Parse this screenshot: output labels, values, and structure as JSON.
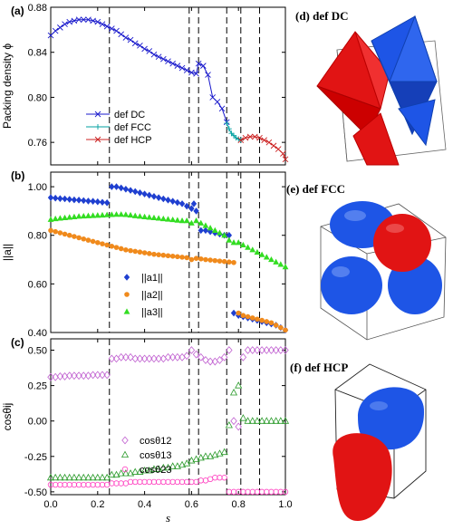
{
  "colors": {
    "dc": "#1a1acc",
    "fcc": "#00a0a0",
    "hcp": "#cc2222",
    "a1": "#1f3fd0",
    "a2": "#f08a1c",
    "a3": "#33dd22",
    "c12": "#c060d0",
    "c13": "#2a9a2a",
    "c23": "#ff40c0",
    "shape_red": "#e11414",
    "shape_blue": "#1e55e6"
  },
  "chart_data": [
    {
      "type": "line",
      "panel_label": "(a)",
      "ylabel": "Packing density ϕ",
      "ylim": [
        0.74,
        0.88
      ],
      "yticks": [
        "0.76",
        "0.80",
        "0.84",
        "0.88"
      ],
      "xlim": [
        0.0,
        1.0
      ],
      "dashed_lines_x": [
        0.25,
        0.59,
        0.63,
        0.75,
        0.81,
        0.89
      ],
      "legend": "center-left",
      "series": [
        {
          "name": "def DC",
          "marker": "x",
          "x": [
            0.0,
            0.02,
            0.04,
            0.06,
            0.08,
            0.1,
            0.12,
            0.14,
            0.16,
            0.18,
            0.2,
            0.22,
            0.24,
            0.26,
            0.28,
            0.3,
            0.32,
            0.34,
            0.36,
            0.38,
            0.4,
            0.42,
            0.44,
            0.46,
            0.48,
            0.5,
            0.52,
            0.54,
            0.56,
            0.58,
            0.6,
            0.62,
            0.63,
            0.65,
            0.67,
            0.69,
            0.71,
            0.73,
            0.75
          ],
          "y": [
            0.855,
            0.859,
            0.862,
            0.865,
            0.867,
            0.868,
            0.869,
            0.869,
            0.869,
            0.868,
            0.867,
            0.865,
            0.863,
            0.861,
            0.859,
            0.856,
            0.853,
            0.851,
            0.848,
            0.846,
            0.843,
            0.841,
            0.838,
            0.836,
            0.834,
            0.832,
            0.83,
            0.828,
            0.826,
            0.824,
            0.822,
            0.821,
            0.83,
            0.828,
            0.82,
            0.8,
            0.796,
            0.79,
            0.778
          ]
        },
        {
          "name": "def FCC",
          "marker": "+",
          "x": [
            0.75,
            0.76,
            0.77,
            0.78,
            0.79,
            0.8,
            0.81
          ],
          "y": [
            0.777,
            0.772,
            0.768,
            0.766,
            0.764,
            0.763,
            0.762
          ]
        },
        {
          "name": "def HCP",
          "marker": "x",
          "x": [
            0.81,
            0.83,
            0.85,
            0.87,
            0.89,
            0.91,
            0.93,
            0.95,
            0.97,
            0.99,
            1.0
          ],
          "y": [
            0.762,
            0.764,
            0.765,
            0.765,
            0.764,
            0.762,
            0.76,
            0.757,
            0.754,
            0.75,
            0.745
          ]
        }
      ]
    },
    {
      "type": "scatter",
      "panel_label": "(b)",
      "ylabel": "||a||",
      "ylim": [
        0.4,
        1.06
      ],
      "yticks": [
        "0.40",
        "0.60",
        "0.80",
        "1.00"
      ],
      "xlim": [
        0.0,
        1.0
      ],
      "dashed_lines_x": [
        0.25,
        0.59,
        0.63,
        0.75,
        0.81,
        0.89
      ],
      "legend": "center",
      "series": [
        {
          "name": "||a1||",
          "marker": "diamond",
          "x": [
            0.0,
            0.02,
            0.04,
            0.06,
            0.08,
            0.1,
            0.12,
            0.14,
            0.16,
            0.18,
            0.2,
            0.22,
            0.24,
            0.26,
            0.28,
            0.3,
            0.32,
            0.34,
            0.36,
            0.38,
            0.4,
            0.42,
            0.44,
            0.46,
            0.48,
            0.5,
            0.52,
            0.54,
            0.56,
            0.58,
            0.6,
            0.61,
            0.62,
            0.64,
            0.66,
            0.68,
            0.7,
            0.72,
            0.74,
            0.76,
            0.78,
            0.8,
            0.82,
            0.84,
            0.86,
            0.88,
            0.9,
            0.92,
            0.94,
            0.96,
            0.98,
            1.0
          ],
          "y": [
            0.955,
            0.953,
            0.951,
            0.95,
            0.948,
            0.946,
            0.945,
            0.943,
            0.941,
            0.94,
            0.938,
            0.936,
            0.934,
            1.0,
            1.0,
            0.995,
            0.99,
            0.985,
            0.98,
            0.975,
            0.97,
            0.965,
            0.96,
            0.955,
            0.95,
            0.945,
            0.94,
            0.935,
            0.93,
            0.92,
            0.91,
            0.93,
            0.9,
            0.82,
            0.82,
            0.815,
            0.81,
            0.805,
            0.8,
            0.8,
            0.48,
            0.47,
            0.465,
            0.46,
            0.455,
            0.45,
            0.445,
            0.44,
            0.435,
            0.43,
            0.42,
            0.41
          ]
        },
        {
          "name": "||a2||",
          "marker": "circle",
          "x": [
            0.0,
            0.02,
            0.04,
            0.06,
            0.08,
            0.1,
            0.12,
            0.14,
            0.16,
            0.18,
            0.2,
            0.22,
            0.24,
            0.26,
            0.28,
            0.3,
            0.32,
            0.34,
            0.36,
            0.38,
            0.4,
            0.42,
            0.44,
            0.46,
            0.48,
            0.5,
            0.52,
            0.54,
            0.56,
            0.58,
            0.6,
            0.62,
            0.64,
            0.66,
            0.68,
            0.7,
            0.72,
            0.74,
            0.76,
            0.78,
            0.8,
            0.82,
            0.84,
            0.86,
            0.88,
            0.9,
            0.92,
            0.94,
            0.96,
            0.98,
            1.0
          ],
          "y": [
            0.82,
            0.815,
            0.81,
            0.805,
            0.8,
            0.795,
            0.79,
            0.785,
            0.78,
            0.775,
            0.77,
            0.765,
            0.76,
            0.755,
            0.75,
            0.745,
            0.74,
            0.737,
            0.734,
            0.731,
            0.728,
            0.725,
            0.722,
            0.72,
            0.718,
            0.716,
            0.714,
            0.712,
            0.71,
            0.708,
            0.7,
            0.705,
            0.703,
            0.7,
            0.698,
            0.696,
            0.694,
            0.692,
            0.69,
            0.688,
            0.48,
            0.47,
            0.465,
            0.46,
            0.455,
            0.45,
            0.445,
            0.44,
            0.43,
            0.42,
            0.41
          ]
        },
        {
          "name": "||a3||",
          "marker": "triangle",
          "x": [
            0.0,
            0.02,
            0.04,
            0.06,
            0.08,
            0.1,
            0.12,
            0.14,
            0.16,
            0.18,
            0.2,
            0.22,
            0.24,
            0.26,
            0.28,
            0.3,
            0.32,
            0.34,
            0.36,
            0.38,
            0.4,
            0.42,
            0.44,
            0.46,
            0.48,
            0.5,
            0.52,
            0.54,
            0.56,
            0.58,
            0.6,
            0.62,
            0.64,
            0.66,
            0.68,
            0.7,
            0.72,
            0.74,
            0.76,
            0.78,
            0.8,
            0.82,
            0.84,
            0.86,
            0.88,
            0.9,
            0.92,
            0.94,
            0.96,
            0.98,
            1.0
          ],
          "y": [
            0.865,
            0.868,
            0.87,
            0.872,
            0.874,
            0.876,
            0.878,
            0.879,
            0.88,
            0.881,
            0.882,
            0.883,
            0.884,
            0.885,
            0.886,
            0.886,
            0.885,
            0.883,
            0.88,
            0.878,
            0.876,
            0.874,
            0.872,
            0.87,
            0.868,
            0.866,
            0.864,
            0.862,
            0.86,
            0.86,
            0.85,
            0.86,
            0.85,
            0.84,
            0.83,
            0.82,
            0.81,
            0.8,
            0.78,
            0.77,
            0.77,
            0.76,
            0.75,
            0.74,
            0.73,
            0.72,
            0.71,
            0.7,
            0.69,
            0.68,
            0.67
          ]
        }
      ]
    },
    {
      "type": "scatter",
      "panel_label": "(c)",
      "ylabel": "cosθij",
      "xlabel": "s",
      "ylim": [
        -0.52,
        0.58
      ],
      "yticks": [
        "-0.50",
        "-0.25",
        "0.00",
        "0.25",
        "0.50"
      ],
      "xticks": [
        "0.0",
        "0.2",
        "0.4",
        "0.6",
        "0.8",
        "1.0"
      ],
      "xlim": [
        0.0,
        1.0
      ],
      "dashed_lines_x": [
        0.25,
        0.59,
        0.63,
        0.75,
        0.81,
        0.89
      ],
      "legend": "lower-center",
      "series": [
        {
          "name": "cosθ12",
          "marker": "diamond-open",
          "x": [
            0.0,
            0.02,
            0.04,
            0.06,
            0.08,
            0.1,
            0.12,
            0.14,
            0.16,
            0.18,
            0.2,
            0.22,
            0.24,
            0.26,
            0.28,
            0.3,
            0.32,
            0.34,
            0.36,
            0.38,
            0.4,
            0.42,
            0.44,
            0.46,
            0.48,
            0.5,
            0.52,
            0.54,
            0.56,
            0.58,
            0.6,
            0.62,
            0.64,
            0.66,
            0.68,
            0.7,
            0.72,
            0.74,
            0.76,
            0.78,
            0.8,
            0.82,
            0.84,
            0.86,
            0.88,
            0.9,
            0.92,
            0.94,
            0.96,
            0.98,
            1.0
          ],
          "y": [
            0.31,
            0.31,
            0.315,
            0.315,
            0.32,
            0.32,
            0.32,
            0.32,
            0.32,
            0.325,
            0.325,
            0.325,
            0.325,
            0.44,
            0.44,
            0.45,
            0.45,
            0.45,
            0.44,
            0.44,
            0.44,
            0.44,
            0.44,
            0.44,
            0.44,
            0.45,
            0.45,
            0.45,
            0.45,
            0.46,
            0.5,
            0.47,
            0.45,
            0.43,
            0.42,
            0.42,
            0.43,
            0.45,
            0.5,
            0.0,
            -0.04,
            0.45,
            0.5,
            0.5,
            0.5,
            0.5,
            0.5,
            0.5,
            0.5,
            0.5,
            0.5
          ]
        },
        {
          "name": "cosθ13",
          "marker": "triangle-open",
          "x": [
            0.0,
            0.02,
            0.04,
            0.06,
            0.08,
            0.1,
            0.12,
            0.14,
            0.16,
            0.18,
            0.2,
            0.22,
            0.24,
            0.26,
            0.28,
            0.3,
            0.32,
            0.34,
            0.36,
            0.38,
            0.4,
            0.42,
            0.44,
            0.46,
            0.48,
            0.5,
            0.52,
            0.54,
            0.56,
            0.58,
            0.6,
            0.62,
            0.64,
            0.66,
            0.68,
            0.7,
            0.72,
            0.74,
            0.76,
            0.78,
            0.8,
            0.82,
            0.84,
            0.86,
            0.88,
            0.9,
            0.92,
            0.94,
            0.96,
            0.98,
            1.0
          ],
          "y": [
            -0.4,
            -0.4,
            -0.4,
            -0.4,
            -0.4,
            -0.4,
            -0.4,
            -0.4,
            -0.4,
            -0.4,
            -0.4,
            -0.4,
            -0.4,
            -0.38,
            -0.38,
            -0.37,
            -0.37,
            -0.37,
            -0.36,
            -0.36,
            -0.35,
            -0.35,
            -0.34,
            -0.34,
            -0.33,
            -0.33,
            -0.32,
            -0.32,
            -0.31,
            -0.3,
            -0.28,
            -0.27,
            -0.26,
            -0.25,
            -0.25,
            -0.24,
            -0.23,
            -0.22,
            -0.03,
            0.2,
            0.25,
            0.02,
            0.0,
            0.0,
            0.0,
            0.0,
            0.0,
            0.0,
            0.0,
            0.0,
            0.0
          ]
        },
        {
          "name": "cosθ23",
          "marker": "circle-open",
          "x": [
            0.0,
            0.02,
            0.04,
            0.06,
            0.08,
            0.1,
            0.12,
            0.14,
            0.16,
            0.18,
            0.2,
            0.22,
            0.24,
            0.26,
            0.28,
            0.3,
            0.32,
            0.34,
            0.36,
            0.38,
            0.4,
            0.42,
            0.44,
            0.46,
            0.48,
            0.5,
            0.52,
            0.54,
            0.56,
            0.58,
            0.6,
            0.62,
            0.64,
            0.66,
            0.68,
            0.7,
            0.72,
            0.74,
            0.76,
            0.78,
            0.8,
            0.82,
            0.84,
            0.86,
            0.88,
            0.9,
            0.92,
            0.94,
            0.96,
            0.98,
            1.0
          ],
          "y": [
            -0.45,
            -0.45,
            -0.45,
            -0.45,
            -0.45,
            -0.45,
            -0.45,
            -0.45,
            -0.45,
            -0.45,
            -0.45,
            -0.45,
            -0.45,
            -0.44,
            -0.44,
            -0.44,
            -0.44,
            -0.43,
            -0.43,
            -0.43,
            -0.43,
            -0.43,
            -0.43,
            -0.43,
            -0.43,
            -0.43,
            -0.43,
            -0.43,
            -0.43,
            -0.43,
            -0.43,
            -0.43,
            -0.42,
            -0.42,
            -0.41,
            -0.4,
            -0.4,
            -0.4,
            -0.5,
            -0.5,
            -0.5,
            -0.5,
            -0.5,
            -0.5,
            -0.5,
            -0.5,
            -0.5,
            -0.5,
            -0.5,
            -0.5,
            -0.5
          ]
        }
      ]
    }
  ],
  "shapes": {
    "dc_label": "(d) def DC",
    "fcc_label": "(e) def FCC",
    "hcp_label": "(f) def HCP"
  }
}
